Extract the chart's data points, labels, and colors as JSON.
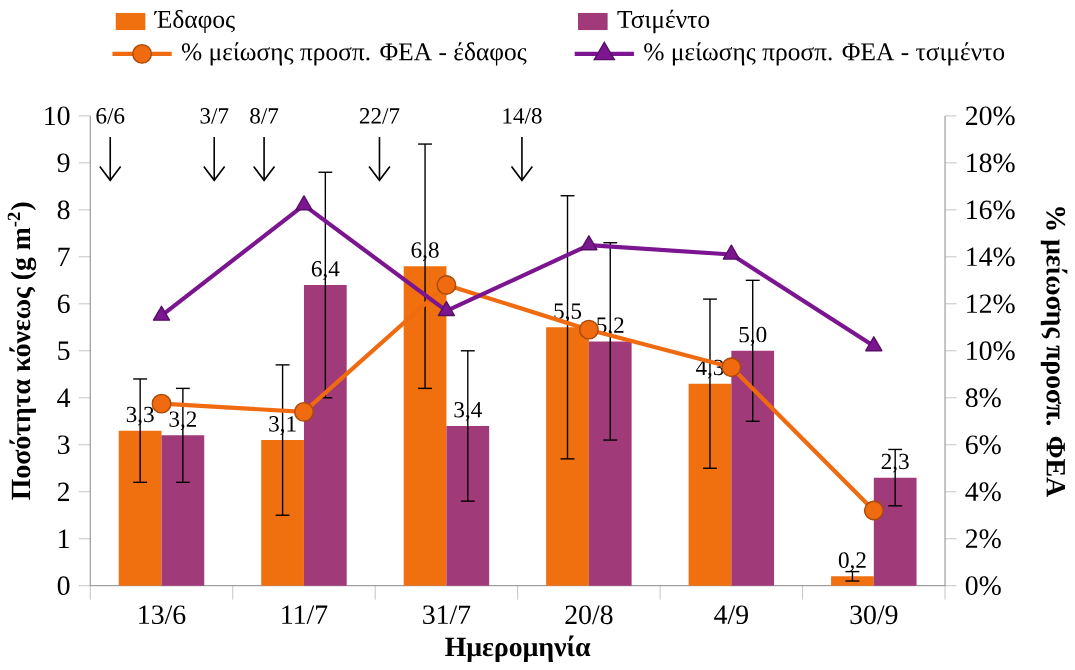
{
  "chart_data": {
    "type": "bar",
    "categories": [
      "13/6",
      "11/7",
      "31/7",
      "20/8",
      "4/9",
      "30/9"
    ],
    "series": [
      {
        "name": "Έδαφος",
        "color": "#f07010",
        "values": [
          3.3,
          3.1,
          6.8,
          5.5,
          4.3,
          0.2
        ],
        "errors": [
          1.1,
          1.6,
          2.6,
          2.8,
          1.8,
          0.1
        ],
        "value_labels": [
          "3,3",
          "3,1",
          "6,8",
          "5,5",
          "4,3",
          "0,2"
        ]
      },
      {
        "name": "Τσιμέντο",
        "color": "#a03a78",
        "values": [
          3.2,
          6.4,
          3.4,
          5.2,
          5.0,
          2.3
        ],
        "errors": [
          1.0,
          2.4,
          1.6,
          2.1,
          1.5,
          0.6
        ],
        "value_labels": [
          "3,2",
          "6,4",
          "3,4",
          "5,2",
          "5,0",
          "2,3"
        ]
      },
      {
        "name": "% μείωσης προσπ. ΦΕΑ - έδαφος",
        "type": "line",
        "axis": "y2",
        "color": "#f06a10",
        "marker": "circle",
        "values": [
          7.75,
          7.4,
          12.8,
          10.9,
          9.3,
          3.2
        ]
      },
      {
        "name": "% μείωσης προσπ. ΦΕΑ - τσιμέντο",
        "type": "line",
        "axis": "y2",
        "color": "#7b1590",
        "marker": "triangle",
        "values": [
          11.5,
          16.2,
          11.7,
          14.5,
          14.1,
          10.2
        ]
      }
    ],
    "xlabel": "Ημερομηνία",
    "ylabel": "Ποσότητα κόνεως (g m$^{-2}$)",
    "y2label": "% μείωσης προσπ. ΦΕΑ",
    "ylim": [
      0,
      10
    ],
    "yticks": [
      0,
      1,
      2,
      3,
      4,
      5,
      6,
      7,
      8,
      9,
      10
    ],
    "y2lim": [
      0,
      20
    ],
    "y2ticks": [
      {
        "value": 0,
        "label": "0%"
      },
      {
        "value": 2,
        "label": "2%"
      },
      {
        "value": 4,
        "label": "4%"
      },
      {
        "value": 6,
        "label": "6%"
      },
      {
        "value": 8,
        "label": "8%"
      },
      {
        "value": 10,
        "label": "10%"
      },
      {
        "value": 12,
        "label": "12%"
      },
      {
        "value": 14,
        "label": "14%"
      },
      {
        "value": 16,
        "label": "16%"
      },
      {
        "value": 18,
        "label": "18%"
      },
      {
        "value": 20,
        "label": "20%"
      }
    ],
    "annotations": [
      "6/6",
      "3/7",
      "8/7",
      "22/7",
      "14/8"
    ],
    "legend": "top"
  }
}
